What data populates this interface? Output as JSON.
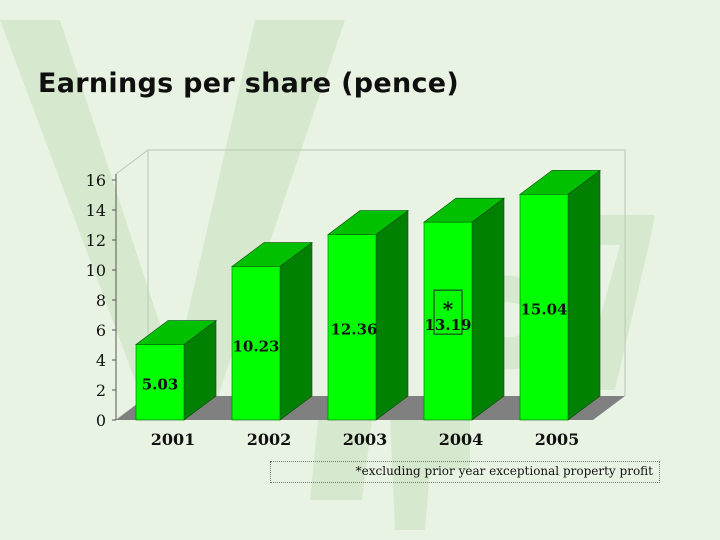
{
  "slide": {
    "title": "Earnings per share (pence)",
    "footnote": "*excluding prior year exceptional property profit"
  },
  "colors": {
    "background": "#e9f3e4",
    "watermark": "#d4e8cc",
    "bar_front": "#00ff00",
    "bar_side": "#008000",
    "bar_top": "#00c000",
    "floor": "#808080"
  },
  "chart_data": {
    "type": "bar",
    "style": "3d",
    "title": "",
    "xlabel": "",
    "ylabel": "",
    "categories": [
      "2001",
      "2002",
      "2003",
      "2004",
      "2005"
    ],
    "values": [
      5.03,
      10.23,
      12.36,
      13.19,
      15.04
    ],
    "value_labels": [
      "5.03",
      "10.23",
      "12.36",
      "13.19",
      "15.04"
    ],
    "y_ticks": [
      "0",
      "2",
      "4",
      "6",
      "8",
      "10",
      "12",
      "14",
      "16"
    ],
    "ylim": [
      0,
      16
    ],
    "annotations": [
      {
        "category": "2004",
        "text": "*"
      }
    ],
    "grid": false,
    "legend": "none"
  }
}
